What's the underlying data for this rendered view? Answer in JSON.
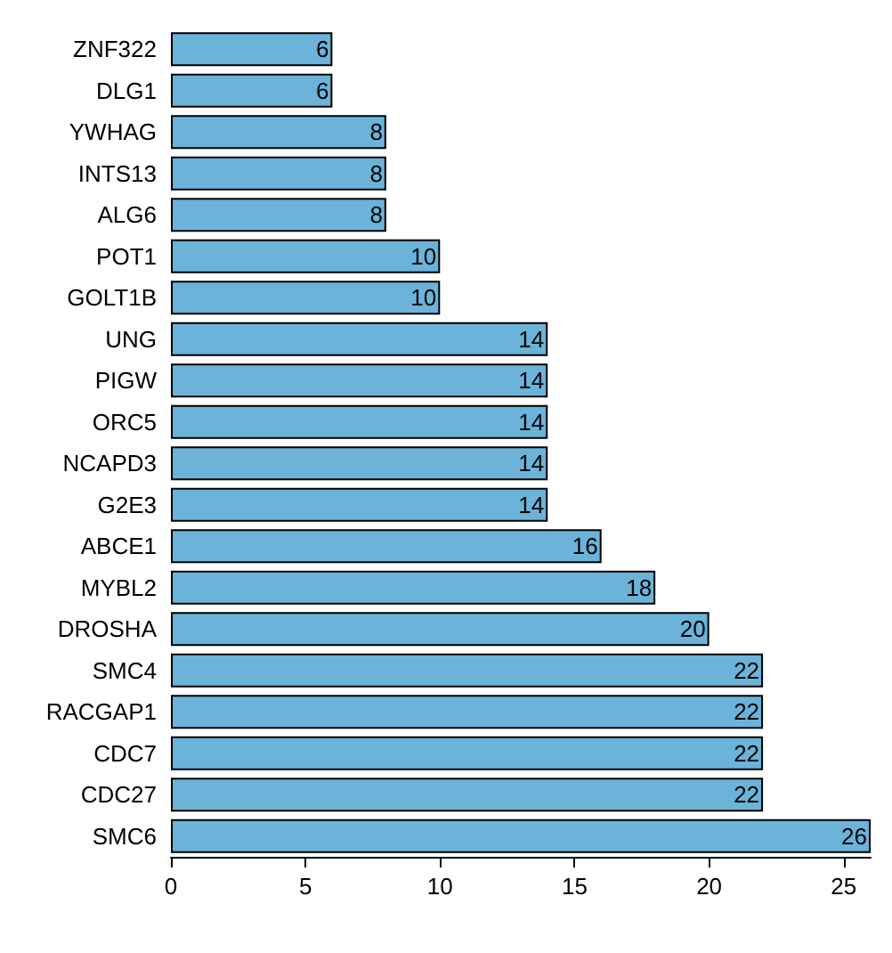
{
  "chart_data": {
    "type": "bar",
    "orientation": "horizontal",
    "categories": [
      "ZNF322",
      "DLG1",
      "YWHAG",
      "INTS13",
      "ALG6",
      "POT1",
      "GOLT1B",
      "UNG",
      "PIGW",
      "ORC5",
      "NCAPD3",
      "G2E3",
      "ABCE1",
      "MYBL2",
      "DROSHA",
      "SMC4",
      "RACGAP1",
      "CDC7",
      "CDC27",
      "SMC6"
    ],
    "values": [
      6,
      6,
      8,
      8,
      8,
      10,
      10,
      14,
      14,
      14,
      14,
      14,
      16,
      18,
      20,
      22,
      22,
      22,
      22,
      26
    ],
    "color": "#6bb3d9",
    "xlim": [
      0,
      26
    ],
    "xticks": [
      0,
      5,
      10,
      15,
      20,
      25
    ],
    "data_labels": true,
    "grid": false
  }
}
